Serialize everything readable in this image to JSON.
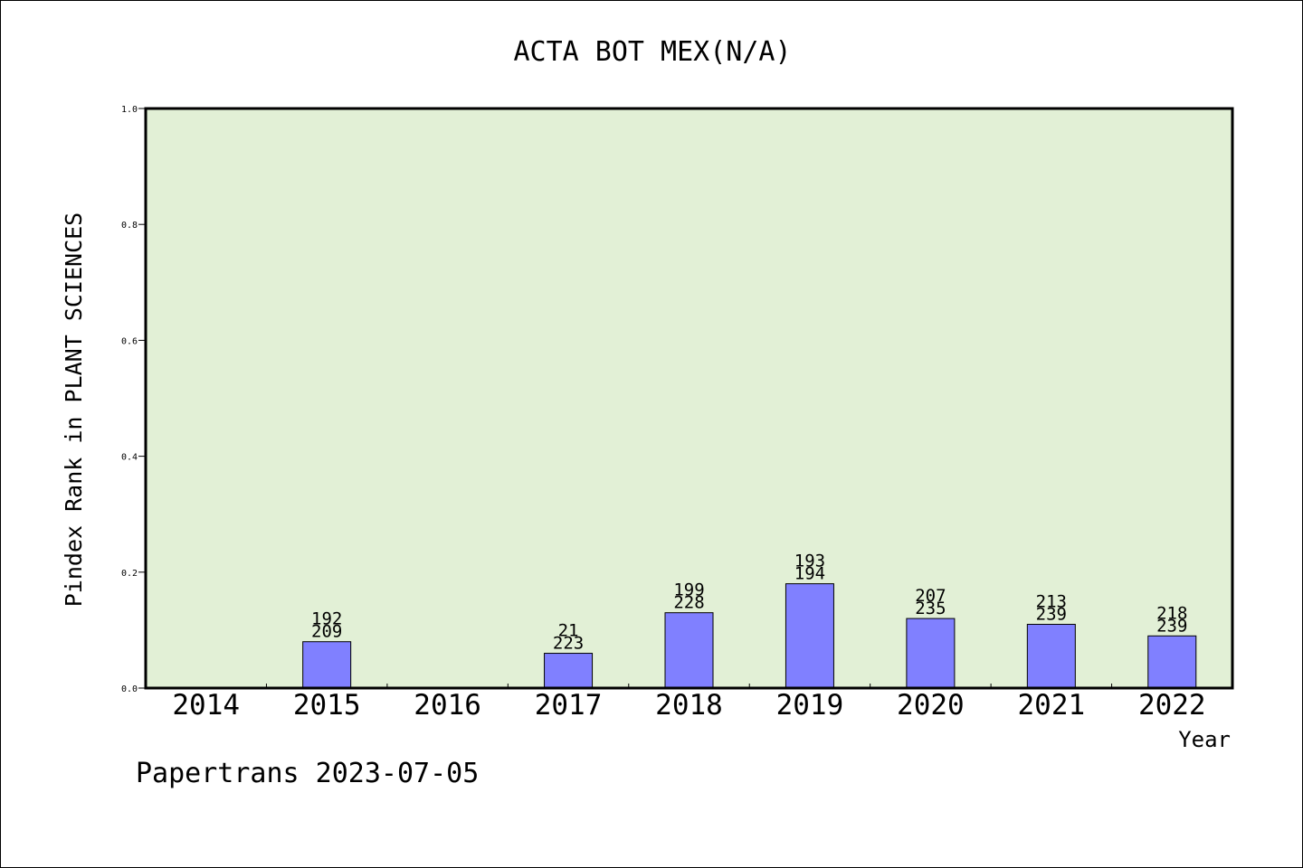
{
  "chart_data": {
    "type": "bar",
    "title": "ACTA BOT MEX(N/A)",
    "xlabel": "Year",
    "ylabel": "Pindex Rank in PLANT SCIENCES",
    "ylim": [
      0,
      1.0
    ],
    "yticks": [
      "0.0",
      "0.2",
      "0.4",
      "0.6",
      "0.8",
      "1.0"
    ],
    "grid": false,
    "categories": [
      "2014",
      "2015",
      "2016",
      "2017",
      "2018",
      "2019",
      "2020",
      "2021",
      "2022"
    ],
    "values": [
      0,
      0.08,
      0,
      0.06,
      0.13,
      0.18,
      0.12,
      0.11,
      0.09
    ],
    "labels_top": [
      "",
      "192",
      "",
      "21",
      "199",
      "193",
      "207",
      "213",
      "218"
    ],
    "labels_bottom": [
      "",
      "209",
      "",
      "223",
      "228",
      "194",
      "235",
      "239",
      "239"
    ],
    "colors": {
      "plot_bg": "#e2f0d6",
      "bar": "#8080ff",
      "axis": "#000000"
    }
  },
  "footer": {
    "text": "Papertrans 2023-07-05"
  }
}
